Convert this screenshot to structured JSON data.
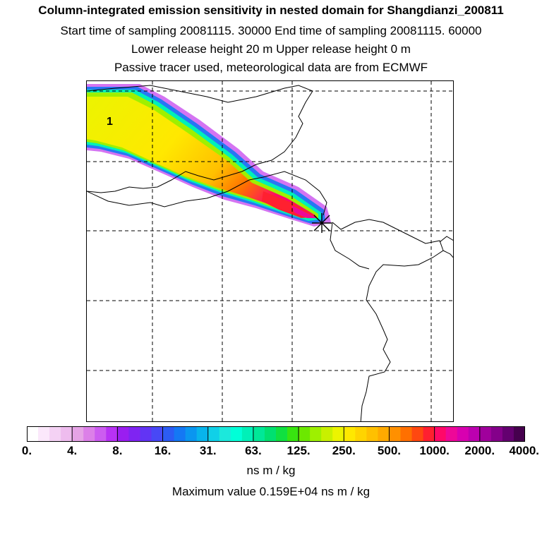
{
  "title": {
    "line1": "Column-integrated emission sensitivity in nested domain for Shangdianzi_200811",
    "line2": "Start time of sampling 20081115. 30000     End time of sampling 20081115. 60000",
    "line3": "Lower release height   20 m          Upper release height    0 m",
    "line4": "Passive tracer used, meteorological data are from ECMWF"
  },
  "map": {
    "label": "1",
    "release_marker": "release-point-x-icon"
  },
  "colorbar": {
    "ticks": [
      "0.",
      "4.",
      "8.",
      "16.",
      "31.",
      "63.",
      "125.",
      "250.",
      "500.",
      "1000.",
      "2000.",
      "4000."
    ],
    "unit": "ns m / kg",
    "colors": [
      "#ffffff",
      "#fbe8fb",
      "#f4d2f4",
      "#eebcee",
      "#e6a4e6",
      "#dc80e8",
      "#cc5cf0",
      "#b832f4",
      "#9a1ef0",
      "#7f24f2",
      "#6234f4",
      "#4848f6",
      "#2c5cf4",
      "#1478f4",
      "#0a96f0",
      "#08b4ec",
      "#10d0e8",
      "#1ce8dc",
      "#00ffd8",
      "#00f0b8",
      "#00e898",
      "#00e070",
      "#10e040",
      "#38e410",
      "#6ce800",
      "#9ef000",
      "#c8f000",
      "#ecf400",
      "#ffe800",
      "#ffd400",
      "#ffc000",
      "#ffaa00",
      "#ff9000",
      "#ff7000",
      "#ff4810",
      "#ff2030",
      "#ff0868",
      "#ee0898",
      "#d800b0",
      "#bc00b0",
      "#a0009c",
      "#84008a",
      "#640070",
      "#46004e"
    ]
  },
  "max_value": "Maximum value  0.159E+04 ns m / kg"
}
